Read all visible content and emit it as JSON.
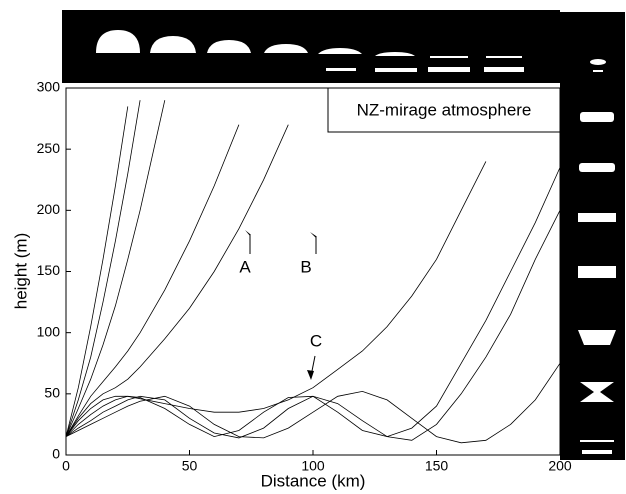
{
  "chart_data": {
    "type": "line",
    "title": "NZ-mirage atmosphere",
    "x_label": "Distance (km)",
    "y_label": "height (m)",
    "annotations": [
      "A",
      "B",
      "C"
    ],
    "color": "#000000",
    "xlim": [
      0,
      200
    ],
    "ylim": [
      0,
      300
    ],
    "xticks": [
      0,
      50,
      100,
      150,
      200
    ],
    "yticks": [
      0,
      50,
      100,
      150,
      200,
      250,
      300
    ],
    "x": [
      0,
      5,
      10,
      15,
      20,
      25,
      30,
      40,
      50,
      60,
      70,
      80,
      90,
      100,
      110,
      120,
      130,
      140,
      150,
      160,
      170,
      180,
      190,
      200
    ],
    "series": [
      {
        "values": [
          15,
          55,
          105,
          160,
          220,
          285,
          null,
          null,
          null,
          null,
          null,
          null,
          null,
          null,
          null,
          null,
          null,
          null,
          null,
          null,
          null,
          null,
          null,
          null
        ]
      },
      {
        "values": [
          15,
          45,
          80,
          125,
          175,
          230,
          290,
          null,
          null,
          null,
          null,
          null,
          null,
          null,
          null,
          null,
          null,
          null,
          null,
          null,
          null,
          null,
          null,
          null
        ]
      },
      {
        "values": [
          15,
          38,
          62,
          90,
          122,
          160,
          200,
          290,
          null,
          null,
          null,
          null,
          null,
          null,
          null,
          null,
          null,
          null,
          null,
          null,
          null,
          null,
          null,
          null
        ]
      },
      {
        "values": [
          15,
          32,
          48,
          60,
          72,
          85,
          100,
          135,
          175,
          220,
          270,
          null,
          null,
          null,
          null,
          null,
          null,
          null,
          null,
          null,
          null,
          null,
          null,
          null
        ]
      },
      {
        "values": [
          15,
          30,
          42,
          50,
          55,
          62,
          72,
          95,
          120,
          150,
          185,
          225,
          270,
          null,
          null,
          null,
          null,
          null,
          null,
          null,
          null,
          null,
          null,
          null
        ]
      },
      {
        "values": [
          15,
          28,
          38,
          45,
          48,
          48,
          46,
          42,
          38,
          35,
          35,
          38,
          45,
          55,
          70,
          85,
          105,
          130,
          160,
          200,
          240,
          null,
          null,
          null
        ]
      },
      {
        "values": [
          15,
          25,
          33,
          40,
          45,
          48,
          47,
          38,
          25,
          15,
          20,
          35,
          47,
          48,
          35,
          20,
          15,
          22,
          40,
          75,
          110,
          150,
          190,
          235
        ]
      },
      {
        "values": [
          15,
          22,
          28,
          35,
          40,
          45,
          48,
          45,
          30,
          18,
          14,
          22,
          38,
          48,
          42,
          28,
          15,
          12,
          25,
          50,
          80,
          115,
          160,
          200
        ]
      },
      {
        "values": [
          15,
          20,
          25,
          30,
          35,
          40,
          44,
          48,
          40,
          25,
          15,
          14,
          22,
          35,
          48,
          52,
          45,
          30,
          15,
          10,
          12,
          25,
          45,
          75
        ]
      }
    ]
  }
}
